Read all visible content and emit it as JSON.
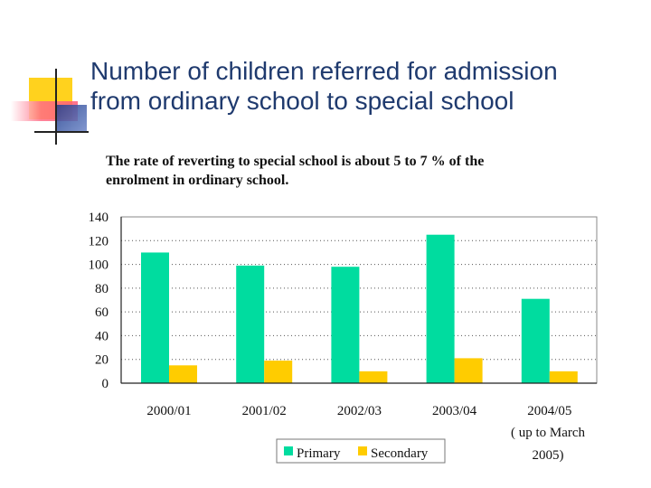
{
  "slide": {
    "title_line1": "Number of children referred for admission",
    "title_line2": "from ordinary school to special school",
    "subtitle_line1": "The rate of reverting to special school is about 5 to 7 % of the",
    "subtitle_line2": "enrolment in ordinary school."
  },
  "colors": {
    "primary": "#00dc9f",
    "secondary": "#ffcc00",
    "title": "#1f3a6e",
    "deco_yellow": "#ffd21e",
    "deco_pink": "#ff5a78",
    "deco_blue": "#1e3c8c"
  },
  "chart_data": {
    "type": "bar",
    "categories": [
      "2000/01",
      "2001/02",
      "2002/03",
      "2003/04",
      "2004/05"
    ],
    "series": [
      {
        "name": "Primary",
        "values": [
          110,
          99,
          98,
          125,
          71
        ]
      },
      {
        "name": "Secondary",
        "values": [
          15,
          19,
          10,
          21,
          10
        ]
      }
    ],
    "ylim": [
      0,
      140
    ],
    "yticks": [
      0,
      20,
      40,
      60,
      80,
      100,
      120,
      140
    ],
    "grid": true,
    "legend": "bottom",
    "note_line1": "( up to March",
    "note_line2": "2005)"
  }
}
